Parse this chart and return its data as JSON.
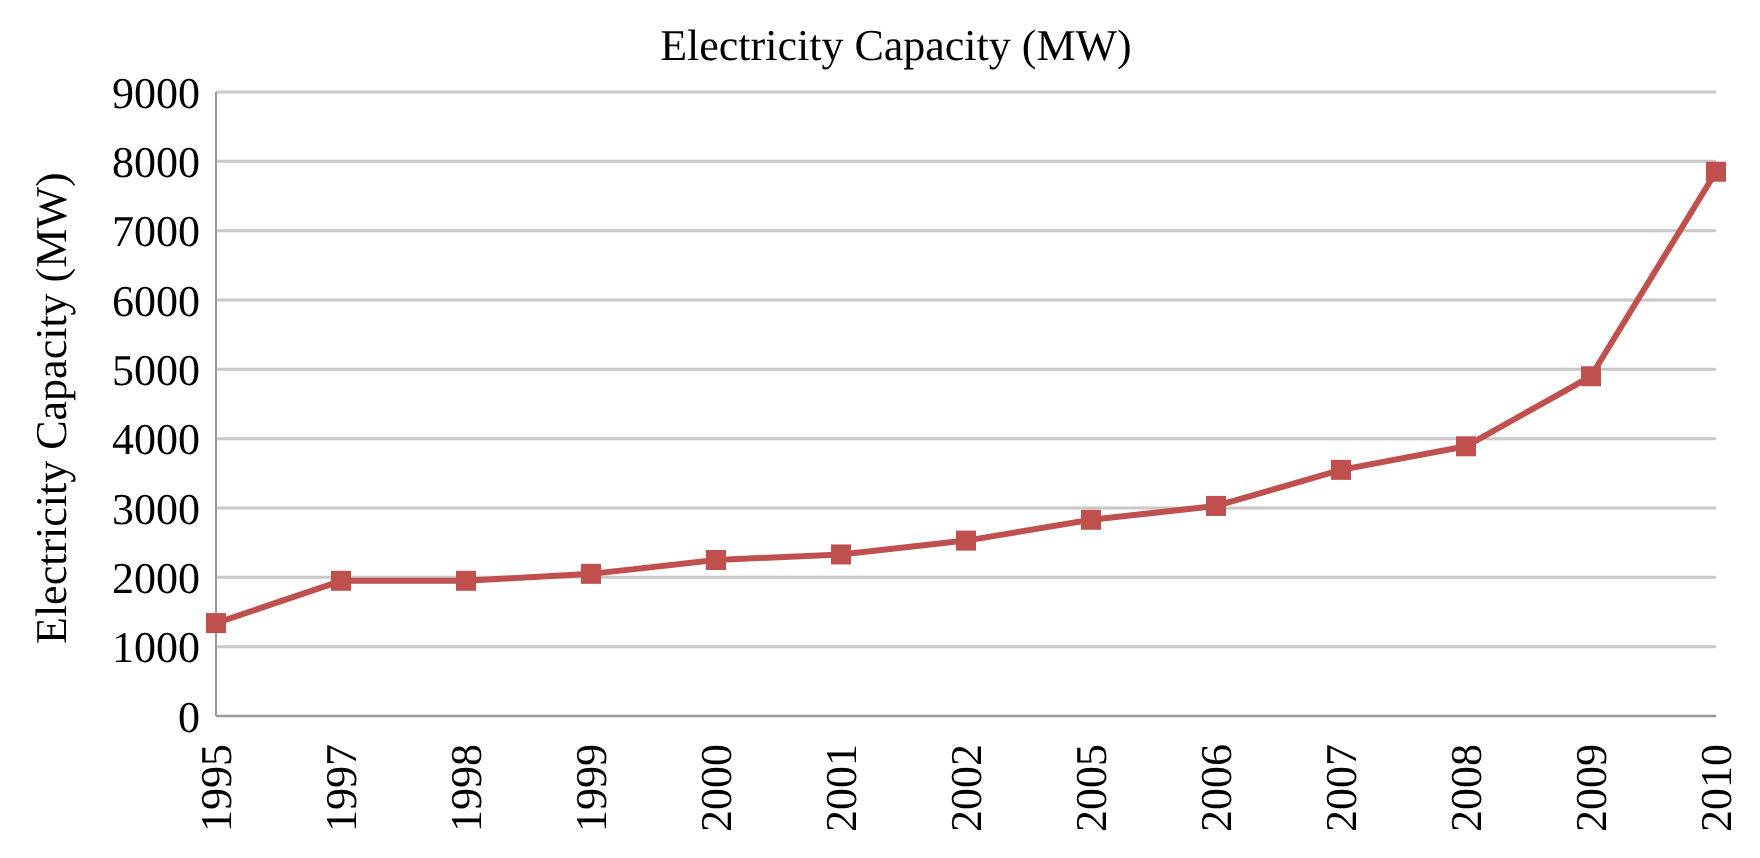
{
  "chart_data": {
    "type": "line",
    "title": "Electricity Capacity (MW)",
    "ylabel": "Electricity Capacity (MW)",
    "categories": [
      "1995",
      "1997",
      "1998",
      "1999",
      "2000",
      "2001",
      "2002",
      "2005",
      "2006",
      "2007",
      "2008",
      "2009",
      "2010"
    ],
    "series": [
      {
        "color": "#c0504d",
        "values": [
          1340,
          1950,
          1950,
          2050,
          2250,
          2330,
          2530,
          2830,
          3030,
          3550,
          3890,
          4900,
          7850
        ]
      }
    ],
    "ylim": [
      0,
      9000
    ],
    "yticks": [
      0,
      1000,
      2000,
      3000,
      4000,
      5000,
      6000,
      7000,
      8000,
      9000
    ],
    "grid": "y",
    "marker": "square",
    "line_style": "solid",
    "legend": false
  }
}
